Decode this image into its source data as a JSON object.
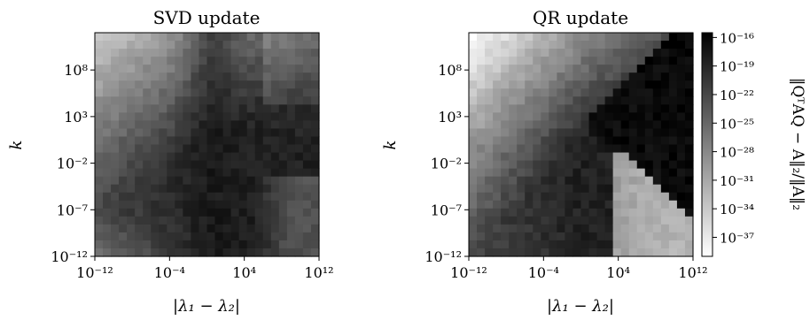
{
  "chart_data": [
    {
      "type": "heatmap",
      "title": "SVD update",
      "xlabel": "|λ₁ − λ₂|",
      "ylabel": "k",
      "x_scale": "log",
      "y_scale": "log",
      "xlim": [
        1e-12,
        1000000000000.0
      ],
      "ylim": [
        1e-12,
        1000000000000.0
      ],
      "x_ticks": [
        "10⁻¹²",
        "10⁻⁴",
        "10⁴",
        "10¹²"
      ],
      "y_ticks": [
        "10⁻¹²",
        "10⁻⁷",
        "10⁻²",
        "10³",
        "10⁸"
      ],
      "grid": "28x28",
      "description_values": "log10 of relative error, estimated; low (~-38) near top-left corner, high (~-17 to -19) along dark band near |λ1-λ2| ≈ 1e1, k ≈ 1e0"
    },
    {
      "type": "heatmap",
      "title": "QR update",
      "xlabel": "|λ₁ − λ₂|",
      "ylabel": "k",
      "x_scale": "log",
      "y_scale": "log",
      "xlim": [
        1e-12,
        1000000000000.0
      ],
      "ylim": [
        1e-12,
        1000000000000.0
      ],
      "x_ticks": [
        "10⁻¹²",
        "10⁻⁴",
        "10⁴",
        "10¹²"
      ],
      "y_ticks": [
        "10⁻¹²",
        "10⁻⁷",
        "10⁻²",
        "10³",
        "10⁸"
      ],
      "grid": "28x28"
    }
  ],
  "colorbar": {
    "label": "‖QᵀAQ − A‖₂/‖A‖₂",
    "ticks": [
      "10⁻¹⁶",
      "10⁻¹⁹",
      "10⁻²²",
      "10⁻²⁵",
      "10⁻²⁸",
      "10⁻³¹",
      "10⁻³⁴",
      "10⁻³⁷"
    ],
    "tick_exponents": [
      -16,
      -19,
      -22,
      -25,
      -28,
      -31,
      -34,
      -37
    ],
    "range_exponent": [
      -39,
      -15.5
    ],
    "colormap": "gray_r",
    "dark_color": "#000000",
    "light_color": "#ffffff"
  }
}
